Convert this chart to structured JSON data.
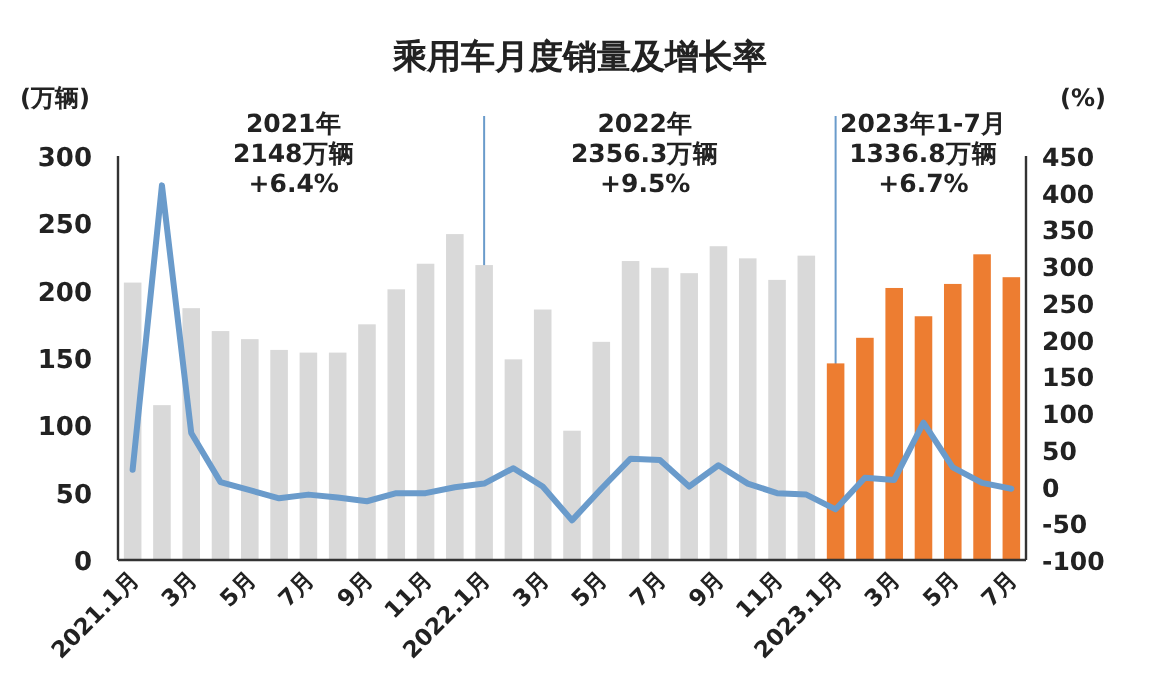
{
  "chart_data": {
    "type": "bar",
    "title": "乘用车月度销量及增长率",
    "ylabel": "(万辆)",
    "y2label": "(%)",
    "categories": [
      "2021.1月",
      null,
      "3月",
      null,
      "5月",
      null,
      "7月",
      null,
      "9月",
      null,
      "11月",
      null,
      "2022.1月",
      null,
      "3月",
      null,
      "5月",
      null,
      "7月",
      null,
      "9月",
      null,
      "11月",
      null,
      "2023.1月",
      null,
      "3月",
      null,
      "5月",
      null,
      "7月"
    ],
    "series": [
      {
        "colors": [
          "#d9d9d9",
          "#d9d9d9",
          "#d9d9d9",
          "#d9d9d9",
          "#d9d9d9",
          "#d9d9d9",
          "#d9d9d9",
          "#d9d9d9",
          "#d9d9d9",
          "#d9d9d9",
          "#d9d9d9",
          "#d9d9d9",
          "#d9d9d9",
          "#d9d9d9",
          "#d9d9d9",
          "#d9d9d9",
          "#d9d9d9",
          "#d9d9d9",
          "#d9d9d9",
          "#d9d9d9",
          "#d9d9d9",
          "#d9d9d9",
          "#d9d9d9",
          "#d9d9d9",
          "#ed7d31",
          "#ed7d31",
          "#ed7d31",
          "#ed7d31",
          "#ed7d31",
          "#ed7d31",
          "#ed7d31"
        ],
        "values": [
          206,
          115,
          187,
          170,
          164,
          156,
          154,
          154,
          175,
          201,
          220,
          242,
          219,
          149,
          186,
          96,
          162,
          222,
          217,
          213,
          233,
          224,
          208,
          226,
          146,
          165,
          202,
          181,
          205,
          227,
          210
        ]
      },
      {
        "type": "line",
        "axis": "y2",
        "color": "#6a9bcb",
        "marker": "none",
        "line_style": "solid",
        "values": [
          23,
          410,
          73,
          6,
          -5,
          -16,
          -11,
          -15,
          -20,
          -9,
          -9,
          -1,
          4,
          25,
          0,
          -46,
          -3,
          38,
          36,
          0,
          29,
          4,
          -9,
          -11,
          -31,
          12,
          9,
          87,
          26,
          5,
          -3
        ]
      }
    ],
    "ylim": [
      0,
      300
    ],
    "yticks": [
      0,
      50,
      100,
      150,
      200,
      250,
      300
    ],
    "y2lim": [
      -100,
      450
    ],
    "y2ticks": [
      -100,
      -50,
      0,
      50,
      100,
      150,
      200,
      250,
      300,
      350,
      400,
      450
    ],
    "ref_lines": [
      {
        "axis": "x",
        "value": "2022.1月",
        "color": "#6a9bcb"
      },
      {
        "axis": "x",
        "value": "2023.1月",
        "color": "#6a9bcb"
      }
    ],
    "annotations": [
      "2021年\n2148万辆\n+6.4%",
      "2022年\n2356.3万辆\n+9.5%",
      "2023年1-7月\n1336.8万辆\n+6.7%"
    ],
    "grid": false
  }
}
